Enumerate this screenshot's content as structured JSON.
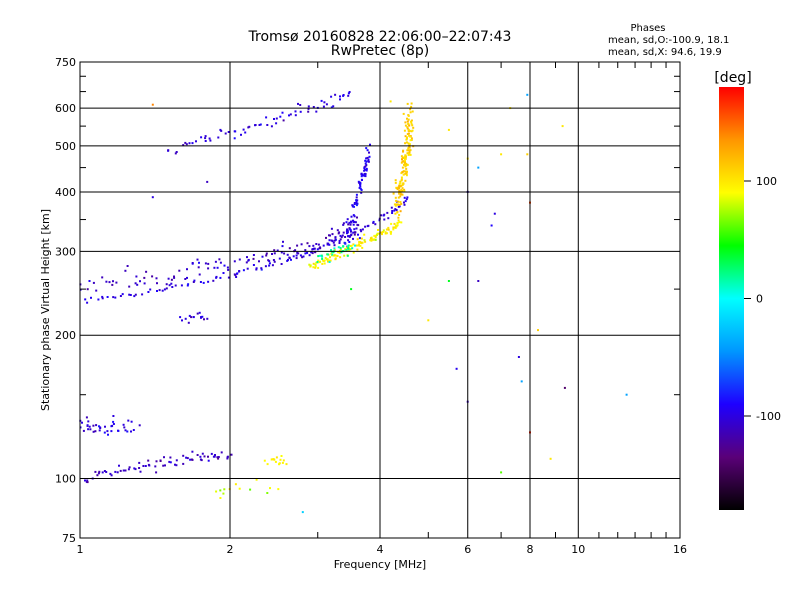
{
  "chart_data": {
    "type": "scatter",
    "title": "Tromsø 20160828 22:06:00–22:07:43",
    "subtitle": "RwPretec (8p)",
    "xlabel": "Frequency [MHz]",
    "ylabel": "Stationary phase Virtual Height [km]",
    "x_scale": "log2",
    "y_scale": "log",
    "xlim": [
      1,
      16
    ],
    "ylim": [
      75,
      750
    ],
    "xticks": [
      1,
      2,
      4,
      6,
      8,
      10,
      16
    ],
    "xtick_labels": [
      "1",
      "2",
      "4",
      "6",
      "8",
      "10",
      "16"
    ],
    "yticks": [
      75,
      100,
      200,
      300,
      400,
      500,
      600,
      750
    ],
    "ytick_labels": [
      "75",
      "100",
      "200",
      "300",
      "400",
      "500",
      "600",
      "750"
    ],
    "grid": true,
    "stats": {
      "heading": "Phases",
      "line_o": "mean, sd,O:-100.9, 18.1",
      "line_x": "mean, sd,X:  94.6, 19.9"
    },
    "colorbar": {
      "label": "[deg]",
      "ticks": [
        100,
        0,
        -100
      ],
      "tick_labels": [
        "100",
        "0",
        "-100"
      ],
      "range": [
        -180,
        180
      ],
      "colors": [
        "#000000",
        "#5a0078",
        "#1e00ff",
        "#0096ff",
        "#00ffff",
        "#00ff00",
        "#ffff00",
        "#ff9600",
        "#ff0000"
      ]
    },
    "series": [
      {
        "values": [
          {
            "fc": 1.0,
            "hc": 235,
            "f1": 3.4,
            "h1": 280,
            "f2": 4.55,
            "h2": 390,
            "phase": -100,
            "n": 120,
            "jx": 0.02,
            "jy": 0.015
          },
          {
            "fc": 1.0,
            "hc": 250,
            "f1": 3.2,
            "h1": 300,
            "f2": 3.6,
            "h2": 340,
            "phase": -108,
            "n": 150,
            "jx": 0.03,
            "jy": 0.05
          },
          {
            "fc": 1.5,
            "hc": 490,
            "f1": 2.5,
            "h1": 560,
            "f2": 3.5,
            "h2": 645,
            "phase": -100,
            "n": 70,
            "jx": 0.02,
            "jy": 0.03
          },
          {
            "fc": 3.4,
            "hc": 320,
            "f1": 3.7,
            "h1": 420,
            "f2": 3.8,
            "h2": 480,
            "phase": -95,
            "n": 80,
            "jx": 0.01,
            "jy": 0.06
          },
          {
            "fc": 1.0,
            "hc": 100,
            "f1": 1.5,
            "h1": 110,
            "f2": 2.0,
            "h2": 112,
            "phase": -110,
            "n": 75,
            "jx": 0.02,
            "jy": 0.03
          },
          {
            "fc": 1.0,
            "hc": 130,
            "f1": 1.1,
            "h1": 125,
            "f2": 1.3,
            "h2": 130,
            "phase": -100,
            "n": 40,
            "jx": 0.02,
            "jy": 0.04
          },
          {
            "fc": 1.6,
            "hc": 215,
            "f1": 1.7,
            "h1": 220,
            "f2": 1.8,
            "h2": 218,
            "phase": -100,
            "n": 15,
            "jx": 0.02,
            "jy": 0.02
          },
          {
            "fc": 2.9,
            "hc": 280,
            "f1": 3.6,
            "h1": 305,
            "f2": 4.4,
            "h2": 345,
            "phase": 95,
            "n": 120,
            "jx": 0.02,
            "jy": 0.02
          },
          {
            "fc": 4.3,
            "hc": 370,
            "f1": 4.55,
            "h1": 450,
            "f2": 4.6,
            "h2": 590,
            "phase": 110,
            "n": 160,
            "jx": 0.02,
            "jy": 0.06
          },
          {
            "fc": 3.0,
            "hc": 290,
            "f1": 3.3,
            "h1": 300,
            "f2": 3.5,
            "h2": 310,
            "phase": 15,
            "n": 30,
            "jx": 0.03,
            "jy": 0.03
          },
          {
            "fc": 2.4,
            "hc": 108,
            "f1": 2.5,
            "h1": 110,
            "f2": 2.6,
            "h2": 108,
            "phase": 95,
            "n": 15,
            "jx": 0.02,
            "jy": 0.03
          },
          {
            "fc": 1.9,
            "hc": 93,
            "f1": 1.9,
            "h1": 95,
            "f2": 2.45,
            "h2": 95,
            "phase": 80,
            "n": 12,
            "jx": 0.02,
            "jy": 0.04
          }
        ]
      }
    ],
    "sparse_points": [
      {
        "x": 1.4,
        "y": 610,
        "phase": 140
      },
      {
        "x": 1.4,
        "y": 390,
        "phase": -100
      },
      {
        "x": 1.8,
        "y": 420,
        "phase": -110
      },
      {
        "x": 3.5,
        "y": 250,
        "phase": 40
      },
      {
        "x": 4.2,
        "y": 620,
        "phase": 100
      },
      {
        "x": 5.5,
        "y": 540,
        "phase": 100
      },
      {
        "x": 5.5,
        "y": 260,
        "phase": 40
      },
      {
        "x": 5.7,
        "y": 170,
        "phase": -95
      },
      {
        "x": 6.0,
        "y": 470,
        "phase": 100
      },
      {
        "x": 6.0,
        "y": 400,
        "phase": -100
      },
      {
        "x": 6.0,
        "y": 145,
        "phase": -110
      },
      {
        "x": 6.3,
        "y": 450,
        "phase": -40
      },
      {
        "x": 6.3,
        "y": 260,
        "phase": -110
      },
      {
        "x": 6.7,
        "y": 340,
        "phase": -90
      },
      {
        "x": 6.8,
        "y": 360,
        "phase": -100
      },
      {
        "x": 7.0,
        "y": 480,
        "phase": 100
      },
      {
        "x": 7.3,
        "y": 600,
        "phase": 100
      },
      {
        "x": 7.6,
        "y": 180,
        "phase": -100
      },
      {
        "x": 7.7,
        "y": 160,
        "phase": -40
      },
      {
        "x": 7.9,
        "y": 640,
        "phase": -40
      },
      {
        "x": 7.9,
        "y": 480,
        "phase": 110
      },
      {
        "x": 8.0,
        "y": 380,
        "phase": 160
      },
      {
        "x": 8.0,
        "y": 125,
        "phase": 170
      },
      {
        "x": 8.3,
        "y": 205,
        "phase": 110
      },
      {
        "x": 8.8,
        "y": 110,
        "phase": 100
      },
      {
        "x": 9.3,
        "y": 550,
        "phase": 100
      },
      {
        "x": 9.4,
        "y": 155,
        "phase": -140
      },
      {
        "x": 12.5,
        "y": 150,
        "phase": -40
      },
      {
        "x": 7.0,
        "y": 103,
        "phase": 60
      },
      {
        "x": 2.5,
        "y": 95,
        "phase": 90
      },
      {
        "x": 2.8,
        "y": 85,
        "phase": -20
      },
      {
        "x": 5.0,
        "y": 215,
        "phase": 100
      }
    ]
  }
}
